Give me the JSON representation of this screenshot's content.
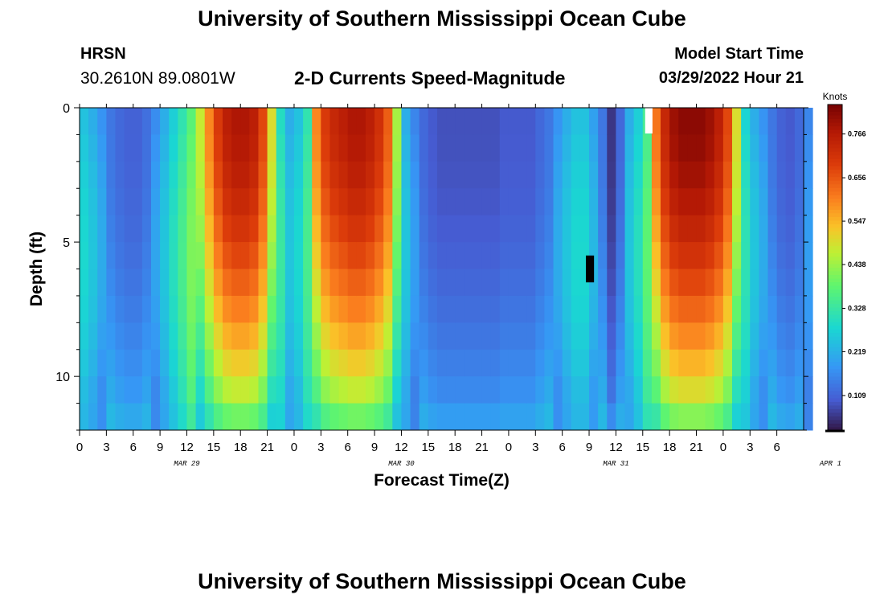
{
  "header": {
    "title": "University of Southern Mississippi Ocean Cube",
    "station": "HRSN",
    "coordinates": "30.2610N  89.0801W",
    "model_start_label": "Model Start Time",
    "model_start_value": "03/29/2022 Hour 21"
  },
  "footer": {
    "title": "University of Southern Mississippi Ocean Cube"
  },
  "chart_data": {
    "type": "heatmap",
    "title": "2-D Currents Speed-Magnitude",
    "xlabel": "Forecast Time(Z)",
    "ylabel": "Depth (ft)",
    "x_hours_range": [
      0,
      81
    ],
    "ylim": [
      0,
      12
    ],
    "x_tick_labels": [
      "0",
      "3",
      "6",
      "9",
      "12",
      "15",
      "18",
      "21",
      "0",
      "3",
      "6",
      "9",
      "12",
      "15",
      "18",
      "21",
      "0",
      "3",
      "6",
      "9",
      "12",
      "15",
      "18",
      "21",
      "0",
      "3",
      "6"
    ],
    "y_tick_labels": [
      "0",
      "5",
      "10"
    ],
    "date_labels": [
      "MAR 29",
      "MAR 30",
      "MAR 31",
      "APR 1"
    ],
    "colorbar": {
      "unit_label": "Knots",
      "tick_labels": [
        "0.766",
        "0.656",
        "0.547",
        "0.438",
        "0.328",
        "0.219",
        "0.109"
      ],
      "ticks": [
        0.766,
        0.656,
        0.547,
        0.438,
        0.328,
        0.219,
        0.109
      ],
      "range": [
        0.02,
        0.84
      ]
    },
    "time_step_hours": 1,
    "depth_layers": 12,
    "surface_speed_knots": [
      0.25,
      0.22,
      0.18,
      0.14,
      0.12,
      0.11,
      0.11,
      0.13,
      0.17,
      0.22,
      0.27,
      0.32,
      0.38,
      0.48,
      0.6,
      0.7,
      0.76,
      0.78,
      0.78,
      0.76,
      0.68,
      0.5,
      0.3,
      0.22,
      0.25,
      0.32,
      0.6,
      0.7,
      0.74,
      0.76,
      0.78,
      0.78,
      0.76,
      0.72,
      0.65,
      0.45,
      0.22,
      0.16,
      0.12,
      0.1,
      0.09,
      0.09,
      0.09,
      0.09,
      0.09,
      0.09,
      0.09,
      0.1,
      0.1,
      0.1,
      0.1,
      0.12,
      0.14,
      0.18,
      0.22,
      0.25,
      0.25,
      0.2,
      0.14,
      0.06,
      0.12,
      0.22,
      0.27,
      0.35,
      0.62,
      0.74,
      0.8,
      0.82,
      0.82,
      0.82,
      0.8,
      0.76,
      0.68,
      0.5,
      0.28,
      0.22,
      0.18,
      0.14,
      0.11,
      0.1,
      0.12,
      0.16
    ],
    "anomalies": [
      {
        "hour": 63,
        "depth": 0.6,
        "note": "white cell"
      },
      {
        "hour": 57,
        "depth_range": [
          5.5,
          6.5
        ],
        "note": "black cells"
      }
    ]
  }
}
